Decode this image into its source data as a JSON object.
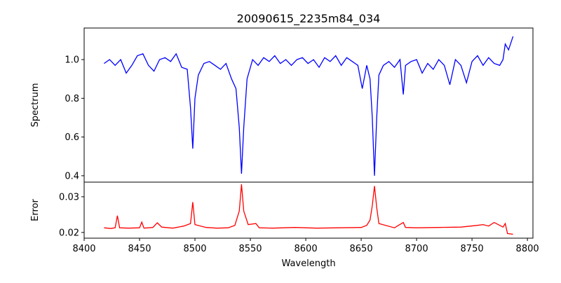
{
  "chart_data": [
    {
      "type": "line",
      "title": "20090615_2235m84_034",
      "ylabel": "Spectrum",
      "xlabel": "",
      "xlim": [
        8400,
        8805
      ],
      "ylim": [
        0.367,
        1.163
      ],
      "yticks": [
        0.4,
        0.6,
        0.8,
        1.0
      ],
      "ytick_labels": [
        "0.4",
        "0.6",
        "0.8",
        "1.0"
      ],
      "color": "#0000ff",
      "x": [
        8418,
        8423,
        8428,
        8433,
        8438,
        8443,
        8448,
        8453,
        8458,
        8463,
        8468,
        8473,
        8478,
        8483,
        8488,
        8493,
        8496,
        8498,
        8500,
        8503,
        8508,
        8513,
        8518,
        8523,
        8528,
        8533,
        8537,
        8540,
        8542,
        8544,
        8547,
        8552,
        8557,
        8562,
        8567,
        8572,
        8577,
        8582,
        8587,
        8592,
        8597,
        8602,
        8607,
        8612,
        8617,
        8622,
        8627,
        8632,
        8637,
        8642,
        8647,
        8651,
        8655,
        8658,
        8660,
        8662,
        8664,
        8666,
        8670,
        8675,
        8680,
        8685,
        8688,
        8690,
        8695,
        8700,
        8705,
        8710,
        8715,
        8720,
        8725,
        8730,
        8735,
        8740,
        8745,
        8750,
        8755,
        8760,
        8765,
        8770,
        8775,
        8778,
        8780,
        8783,
        8787
      ],
      "y": [
        0.98,
        1.0,
        0.97,
        1.0,
        0.93,
        0.97,
        1.02,
        1.03,
        0.97,
        0.94,
        1.0,
        1.01,
        0.99,
        1.03,
        0.96,
        0.95,
        0.75,
        0.54,
        0.8,
        0.92,
        0.98,
        0.99,
        0.97,
        0.95,
        0.98,
        0.9,
        0.85,
        0.65,
        0.41,
        0.65,
        0.9,
        1.0,
        0.97,
        1.01,
        0.99,
        1.02,
        0.98,
        1.0,
        0.97,
        1.0,
        1.01,
        0.98,
        1.0,
        0.96,
        1.01,
        0.99,
        1.02,
        0.97,
        1.01,
        0.99,
        0.97,
        0.85,
        0.97,
        0.9,
        0.7,
        0.4,
        0.7,
        0.92,
        0.97,
        0.99,
        0.96,
        1.0,
        0.82,
        0.97,
        0.99,
        1.0,
        0.93,
        0.98,
        0.95,
        1.0,
        0.97,
        0.87,
        1.0,
        0.97,
        0.88,
        0.99,
        1.02,
        0.97,
        1.01,
        0.98,
        0.97,
        1.0,
        1.08,
        1.05,
        1.12
      ]
    },
    {
      "type": "line",
      "title": "",
      "ylabel": "Error",
      "xlabel": "Wavelength",
      "xlim": [
        8400,
        8805
      ],
      "ylim": [
        0.0184,
        0.0341
      ],
      "xticks": [
        8400,
        8450,
        8500,
        8550,
        8600,
        8650,
        8700,
        8750,
        8800
      ],
      "xtick_labels": [
        "8400",
        "8450",
        "8500",
        "8550",
        "8600",
        "8650",
        "8700",
        "8750",
        "8800"
      ],
      "yticks": [
        0.02,
        0.03
      ],
      "ytick_labels": [
        "0.02",
        "0.03"
      ],
      "color": "#ff0000",
      "x": [
        8418,
        8424,
        8428,
        8430,
        8432,
        8440,
        8450,
        8452,
        8454,
        8462,
        8466,
        8470,
        8480,
        8490,
        8496,
        8498,
        8500,
        8510,
        8520,
        8530,
        8536,
        8540,
        8542,
        8544,
        8548,
        8555,
        8558,
        8570,
        8590,
        8610,
        8630,
        8650,
        8655,
        8658,
        8660,
        8662,
        8664,
        8666,
        8680,
        8688,
        8690,
        8700,
        8720,
        8740,
        8755,
        8760,
        8765,
        8770,
        8775,
        8778,
        8780,
        8782,
        8787
      ],
      "y": [
        0.0213,
        0.0211,
        0.0213,
        0.0247,
        0.0213,
        0.0212,
        0.0213,
        0.0229,
        0.0212,
        0.0214,
        0.0227,
        0.0215,
        0.0212,
        0.0218,
        0.0225,
        0.0285,
        0.0222,
        0.0214,
        0.0212,
        0.0213,
        0.022,
        0.026,
        0.0335,
        0.026,
        0.0222,
        0.0225,
        0.0213,
        0.0212,
        0.0214,
        0.0212,
        0.0213,
        0.0214,
        0.022,
        0.0235,
        0.0275,
        0.033,
        0.027,
        0.0225,
        0.0213,
        0.0228,
        0.0214,
        0.0213,
        0.0214,
        0.0215,
        0.022,
        0.0222,
        0.0218,
        0.0228,
        0.022,
        0.0215,
        0.0225,
        0.0197,
        0.0195
      ]
    }
  ]
}
